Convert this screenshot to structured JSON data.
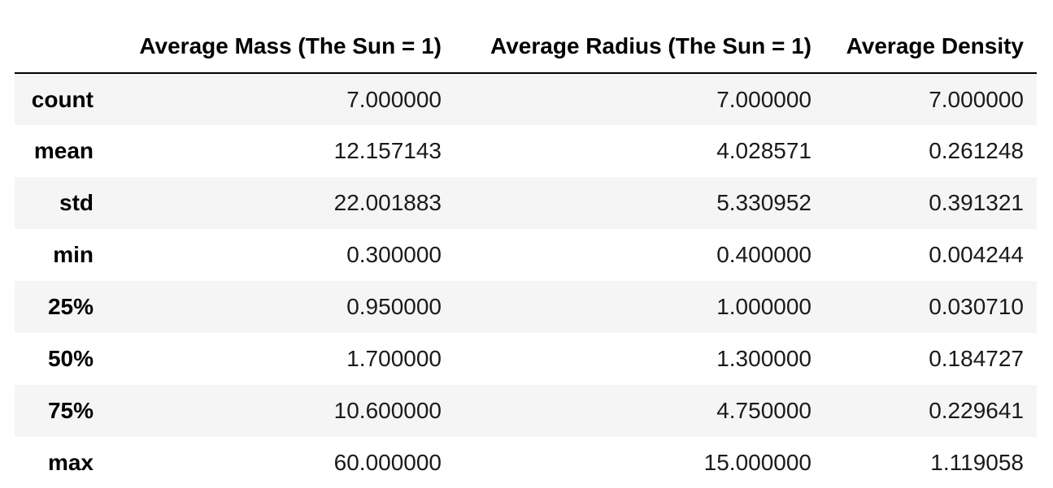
{
  "table": {
    "index_header": "",
    "columns": [
      "Average Mass (The Sun = 1)",
      "Average Radius (The Sun = 1)",
      "Average Density"
    ],
    "rows": [
      {
        "label": "count",
        "values": [
          "7.000000",
          "7.000000",
          "7.000000"
        ]
      },
      {
        "label": "mean",
        "values": [
          "12.157143",
          "4.028571",
          "0.261248"
        ]
      },
      {
        "label": "std",
        "values": [
          "22.001883",
          "5.330952",
          "0.391321"
        ]
      },
      {
        "label": "min",
        "values": [
          "0.300000",
          "0.400000",
          "0.004244"
        ]
      },
      {
        "label": "25%",
        "values": [
          "0.950000",
          "1.000000",
          "0.030710"
        ]
      },
      {
        "label": "50%",
        "values": [
          "1.700000",
          "1.300000",
          "0.184727"
        ]
      },
      {
        "label": "75%",
        "values": [
          "10.600000",
          "4.750000",
          "0.229641"
        ]
      },
      {
        "label": "max",
        "values": [
          "60.000000",
          "15.000000",
          "1.119058"
        ]
      }
    ]
  },
  "colors": {
    "striped_row_background": "#f5f5f5",
    "header_rule": "#000000",
    "text": "#000000"
  }
}
